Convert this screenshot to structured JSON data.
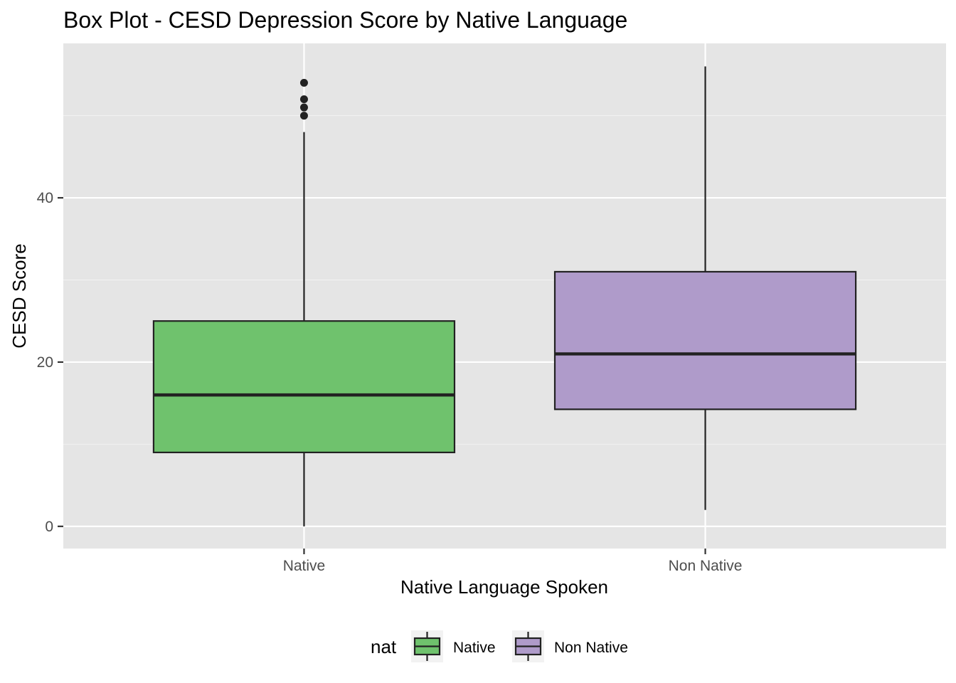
{
  "chart_data": {
    "type": "boxplot",
    "title": "Box Plot - CESD Depression Score by Native Language",
    "xlabel": "Native Language Spoken",
    "ylabel": "CESD Score",
    "categories": [
      "Native",
      "Non Native"
    ],
    "ylim": [
      -2.7,
      58.8
    ],
    "yticks": [
      0,
      20,
      40
    ],
    "grid": true,
    "boxes": [
      {
        "category": "Native",
        "q1": 9,
        "median": 16,
        "q3": 25,
        "whisker_low": 0,
        "whisker_high": 48,
        "outliers": [
          50,
          51,
          52,
          54
        ],
        "color": "#6fc26d"
      },
      {
        "category": "Non Native",
        "q1": 14.25,
        "median": 21,
        "q3": 31,
        "whisker_low": 2,
        "whisker_high": 56,
        "outliers": [],
        "color": "#af9bca"
      }
    ],
    "legend": {
      "title": "nat",
      "position": "bottom",
      "items": [
        {
          "label": "Native",
          "color": "#6fc26d"
        },
        {
          "label": "Non Native",
          "color": "#af9bca"
        }
      ]
    }
  },
  "colors": {
    "panel_background": "#e5e5e5",
    "grid_major": "#ffffff",
    "grid_minor": "#f2f2f2",
    "box_outline": "#222222"
  }
}
